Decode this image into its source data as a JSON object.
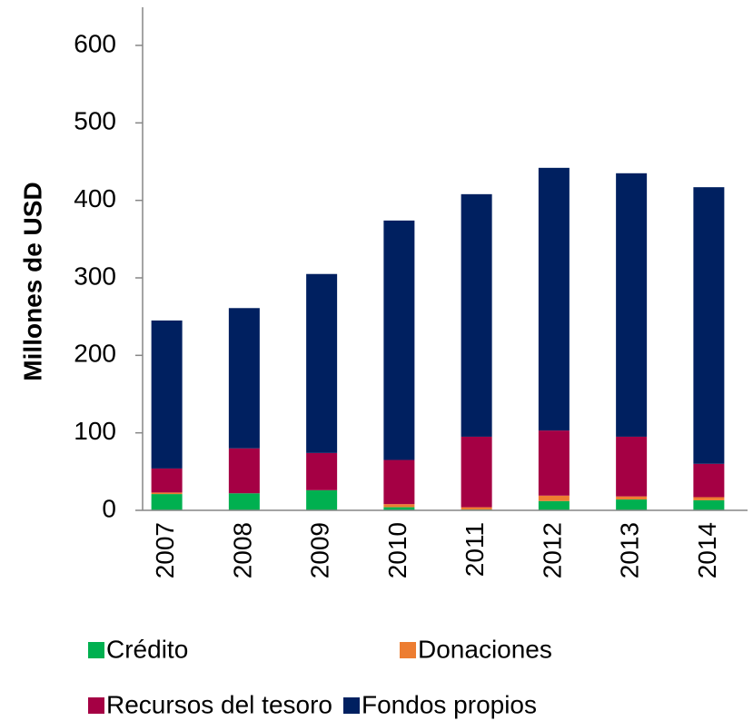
{
  "chart_data": {
    "type": "stacked_bar",
    "y_label": "Millones de USD",
    "categories": [
      "2007",
      "2008",
      "2009",
      "2010",
      "2011",
      "2012",
      "2013",
      "2014"
    ],
    "series": [
      {
        "name": "Crédito",
        "color": "#00b050",
        "values": [
          21,
          22,
          26,
          4,
          1,
          12,
          14,
          13
        ]
      },
      {
        "name": "Donaciones",
        "color": "#ed7d31",
        "values": [
          2,
          0,
          0,
          4,
          3,
          7,
          4,
          4
        ]
      },
      {
        "name": "Recursos del tesoro",
        "color": "#a50044",
        "values": [
          31,
          58,
          48,
          57,
          91,
          84,
          77,
          43
        ]
      },
      {
        "name": "Fondos propios",
        "color": "#002060",
        "values": [
          191,
          181,
          231,
          309,
          313,
          339,
          340,
          357
        ]
      }
    ],
    "ylim": [
      0,
      600
    ],
    "yticks": [
      0,
      100,
      200,
      300,
      400,
      500,
      600
    ]
  }
}
